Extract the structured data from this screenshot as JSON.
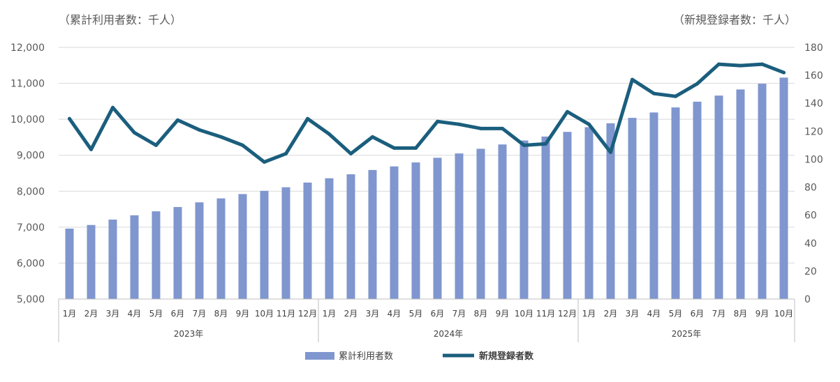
{
  "chart_data": {
    "type": "bar+line",
    "left_axis_unit": "（累計利用者数：千人）",
    "right_axis_unit": "（新規登録者数：千人）",
    "left_ylim": [
      5000,
      12000
    ],
    "left_ticks": [
      "5,000",
      "6,000",
      "7,000",
      "8,000",
      "9,000",
      "10,000",
      "11,000",
      "12,000"
    ],
    "right_ylim": [
      0,
      180
    ],
    "right_ticks": [
      "0",
      "20",
      "40",
      "60",
      "80",
      "100",
      "120",
      "140",
      "160",
      "180"
    ],
    "grid": true,
    "legend_position": "bottom",
    "months": [
      "1月",
      "2月",
      "3月",
      "4月",
      "5月",
      "6月",
      "7月",
      "8月",
      "9月",
      "10月",
      "11月",
      "12月",
      "1月",
      "2月",
      "3月",
      "4月",
      "5月",
      "6月",
      "7月",
      "8月",
      "9月",
      "10月",
      "11月",
      "12月",
      "1月",
      "2月",
      "3月",
      "4月",
      "5月",
      "6月",
      "7月",
      "8月",
      "9月",
      "10月"
    ],
    "years": [
      {
        "label": "2023年",
        "start": 0,
        "count": 12
      },
      {
        "label": "2024年",
        "start": 12,
        "count": 12
      },
      {
        "label": "2025年",
        "start": 24,
        "count": 10
      }
    ],
    "series": [
      {
        "name": "累計利用者数",
        "type": "bar",
        "axis": "left",
        "color": "#7f96cf",
        "values": [
          6960,
          7060,
          7210,
          7330,
          7440,
          7560,
          7690,
          7800,
          7920,
          8010,
          8110,
          8240,
          8360,
          8470,
          8590,
          8690,
          8800,
          8930,
          9050,
          9180,
          9300,
          9410,
          9520,
          9650,
          9780,
          9890,
          10040,
          10190,
          10330,
          10490,
          10660,
          10830,
          10990,
          11160
        ]
      },
      {
        "name": "新規登録者数",
        "type": "line",
        "axis": "right",
        "color": "#1b5e7d",
        "values": [
          129,
          107,
          137,
          119,
          110,
          128,
          121,
          116,
          110,
          98,
          104,
          129,
          118,
          104,
          116,
          108,
          108,
          127,
          125,
          122,
          122,
          110,
          111,
          134,
          125,
          105,
          157,
          147,
          145,
          154,
          168,
          167,
          168,
          162
        ]
      }
    ]
  }
}
